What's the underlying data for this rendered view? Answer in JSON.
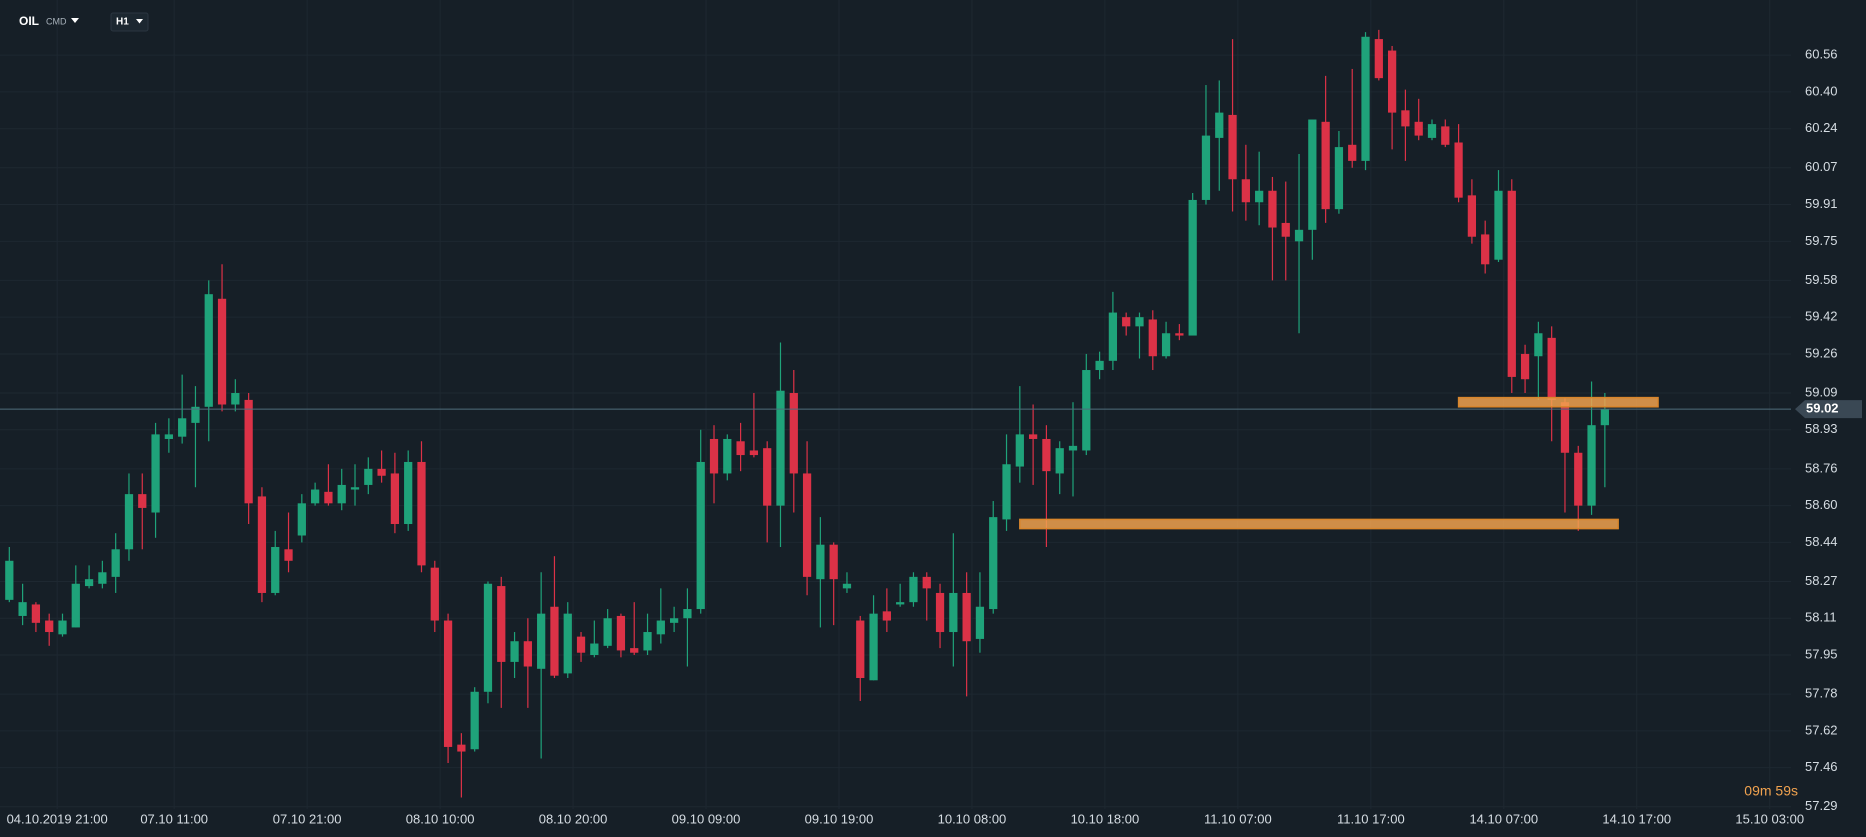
{
  "header": {
    "symbol": "OIL",
    "market": "CMD",
    "interval": "H1"
  },
  "chart_data": {
    "type": "candlestick",
    "up_color": "#1fa37a",
    "down_color": "#dc3247",
    "zone_color": "#f0a24f",
    "grid": true,
    "xlim": [
      -0.7,
      134
    ],
    "ylim": [
      57.28,
      60.8
    ],
    "yticks": [
      60.56,
      {
        "value": 60.4,
        "label": "60.40"
      },
      60.24,
      60.07,
      59.91,
      59.75,
      59.58,
      59.42,
      59.26,
      59.09,
      58.93,
      58.76,
      {
        "value": 58.6,
        "label": "58.60"
      },
      58.44,
      58.27,
      58.11,
      57.95,
      57.78,
      57.62,
      57.46,
      57.29
    ],
    "xticks": [
      {
        "value": 3.6,
        "label": "04.10.2019  21:00"
      },
      {
        "value": 12.4,
        "label": "07.10  11:00"
      },
      {
        "value": 22.4,
        "label": "07.10  21:00"
      },
      {
        "value": 32.4,
        "label": "08.10  10:00"
      },
      {
        "value": 42.4,
        "label": "08.10  20:00"
      },
      {
        "value": 52.4,
        "label": "09.10  09:00"
      },
      {
        "value": 62.4,
        "label": "09.10  19:00"
      },
      {
        "value": 72.4,
        "label": "10.10  08:00"
      },
      {
        "value": 82.4,
        "label": "10.10  18:00"
      },
      {
        "value": 92.4,
        "label": "11.10  07:00"
      },
      {
        "value": 102.4,
        "label": "11.10  17:00"
      },
      {
        "value": 112.4,
        "label": "14.10  07:00"
      },
      {
        "value": 122.4,
        "label": "14.10  17:00"
      },
      {
        "value": 132.4,
        "label": "15.10  03:00"
      }
    ],
    "last_price": 59.02,
    "countdown": "09m 59s",
    "zones": [
      {
        "low": 59.03,
        "high": 59.07,
        "from": 109,
        "to": 124
      },
      {
        "low": 58.5,
        "high": 58.54,
        "from": 76,
        "to": 121
      }
    ],
    "open": [
      58.19,
      58.12,
      58.17,
      58.1,
      58.04,
      58.07,
      58.25,
      58.26,
      58.29,
      58.41,
      58.65,
      58.57,
      58.89,
      58.9,
      58.96,
      59.03,
      59.5,
      59.04,
      59.06,
      58.64,
      58.22,
      58.41,
      58.47,
      58.61,
      58.66,
      58.61,
      58.67,
      58.69,
      58.76,
      58.74,
      58.52,
      58.79,
      58.33,
      58.1,
      57.56,
      57.54,
      57.79,
      58.25,
      57.92,
      58.01,
      57.89,
      58.16,
      57.87,
      58.03,
      57.95,
      57.99,
      58.12,
      57.98,
      57.97,
      58.04,
      58.09,
      58.11,
      58.15,
      58.89,
      58.74,
      58.88,
      58.84,
      58.85,
      58.6,
      59.09,
      58.74,
      58.28,
      58.43,
      58.24,
      58.1,
      57.84,
      58.14,
      58.17,
      58.18,
      58.29,
      58.22,
      58.05,
      58.22,
      58.02,
      58.15,
      58.54,
      58.77,
      58.91,
      58.89,
      58.74,
      58.84,
      58.84,
      59.19,
      59.23,
      59.42,
      59.38,
      59.41,
      59.25,
      59.35,
      59.34,
      59.93,
      60.2,
      60.3,
      60.02,
      59.92,
      59.97,
      59.83,
      59.75,
      59.8,
      60.27,
      59.89,
      60.17,
      60.1,
      60.63,
      60.58,
      60.32,
      60.27,
      60.2,
      60.25,
      60.18,
      59.95,
      59.78,
      59.67,
      59.97,
      59.26,
      59.25,
      59.33,
      59.05,
      58.83,
      58.6,
      58.95
    ],
    "high": [
      58.42,
      58.26,
      58.18,
      58.13,
      58.13,
      58.34,
      58.34,
      58.36,
      58.48,
      58.74,
      58.74,
      58.96,
      58.98,
      59.17,
      59.12,
      59.58,
      59.65,
      59.15,
      59.09,
      58.68,
      58.49,
      58.57,
      58.65,
      58.7,
      58.78,
      58.76,
      58.78,
      58.81,
      58.84,
      58.83,
      58.84,
      58.88,
      58.36,
      58.13,
      57.61,
      57.81,
      58.27,
      58.29,
      58.05,
      58.11,
      58.31,
      58.38,
      58.18,
      58.05,
      58.1,
      58.15,
      58.13,
      58.18,
      58.13,
      58.24,
      58.16,
      58.24,
      58.93,
      58.95,
      58.91,
      58.96,
      59.09,
      58.88,
      59.31,
      59.19,
      58.88,
      58.55,
      58.44,
      58.31,
      58.12,
      58.21,
      58.24,
      58.26,
      58.31,
      58.31,
      58.26,
      58.48,
      58.31,
      58.31,
      58.62,
      58.91,
      59.12,
      59.04,
      58.95,
      58.88,
      59.05,
      59.26,
      59.27,
      59.53,
      59.44,
      59.44,
      59.45,
      59.4,
      59.39,
      59.96,
      60.43,
      60.45,
      60.63,
      60.17,
      60.14,
      60.03,
      60.01,
      60.13,
      60.28,
      60.47,
      60.23,
      60.5,
      60.66,
      60.67,
      60.6,
      60.41,
      60.37,
      60.28,
      60.28,
      60.26,
      60.02,
      59.84,
      60.06,
      60.02,
      59.3,
      59.4,
      59.38,
      59.07,
      58.86,
      59.14,
      59.09
    ],
    "low": [
      58.18,
      58.08,
      58.05,
      57.99,
      58.03,
      58.07,
      58.24,
      58.24,
      58.22,
      58.36,
      58.41,
      58.46,
      58.83,
      58.87,
      58.68,
      58.88,
      59.01,
      59.01,
      58.52,
      58.18,
      58.21,
      58.31,
      58.44,
      58.6,
      58.6,
      58.58,
      58.6,
      58.65,
      58.7,
      58.48,
      58.49,
      58.31,
      58.05,
      57.48,
      57.33,
      57.53,
      57.74,
      57.72,
      57.85,
      57.72,
      57.5,
      57.85,
      57.85,
      57.92,
      57.94,
      57.98,
      57.94,
      57.95,
      57.95,
      58.0,
      58.05,
      57.9,
      58.13,
      58.61,
      58.71,
      58.75,
      58.81,
      58.44,
      58.42,
      58.57,
      58.21,
      58.07,
      58.08,
      58.22,
      57.75,
      57.84,
      58.05,
      58.16,
      58.16,
      58.1,
      57.98,
      57.9,
      57.77,
      57.96,
      58.13,
      58.49,
      58.7,
      58.69,
      58.42,
      58.65,
      58.64,
      58.82,
      59.15,
      59.19,
      59.34,
      59.24,
      59.19,
      59.24,
      59.32,
      59.34,
      59.91,
      59.97,
      59.88,
      59.84,
      59.82,
      59.58,
      59.58,
      59.35,
      59.67,
      59.83,
      59.87,
      60.07,
      60.06,
      60.45,
      60.15,
      60.1,
      60.19,
      60.19,
      60.16,
      59.92,
      59.74,
      59.61,
      59.66,
      59.09,
      59.09,
      59.06,
      58.88,
      58.57,
      58.49,
      58.56,
      58.68
    ],
    "close": [
      58.36,
      58.18,
      58.09,
      58.05,
      58.1,
      58.26,
      58.28,
      58.31,
      58.41,
      58.65,
      58.59,
      58.91,
      58.91,
      58.98,
      59.03,
      59.52,
      59.04,
      59.09,
      58.61,
      58.22,
      58.42,
      58.36,
      58.61,
      58.67,
      58.61,
      58.69,
      58.68,
      58.76,
      58.73,
      58.52,
      58.79,
      58.34,
      58.1,
      57.55,
      57.53,
      57.79,
      58.26,
      57.92,
      58.01,
      57.9,
      58.13,
      57.86,
      58.13,
      57.96,
      58.0,
      58.11,
      57.97,
      57.96,
      58.05,
      58.1,
      58.11,
      58.15,
      58.79,
      58.74,
      58.89,
      58.82,
      58.82,
      58.6,
      59.1,
      58.74,
      58.29,
      58.43,
      58.28,
      58.26,
      57.85,
      58.13,
      58.1,
      58.18,
      58.29,
      58.24,
      58.05,
      58.22,
      58.01,
      58.16,
      58.55,
      58.78,
      58.91,
      58.89,
      58.75,
      58.85,
      58.86,
      59.19,
      59.23,
      59.44,
      59.38,
      59.42,
      59.25,
      59.35,
      59.34,
      59.93,
      60.21,
      60.31,
      60.02,
      59.92,
      59.97,
      59.81,
      59.77,
      59.8,
      60.28,
      59.89,
      60.16,
      60.1,
      60.64,
      60.46,
      60.31,
      60.25,
      60.21,
      60.26,
      60.17,
      59.94,
      59.77,
      59.65,
      59.97,
      59.16,
      59.15,
      59.35,
      59.06,
      58.83,
      58.6,
      58.95,
      59.02
    ]
  }
}
